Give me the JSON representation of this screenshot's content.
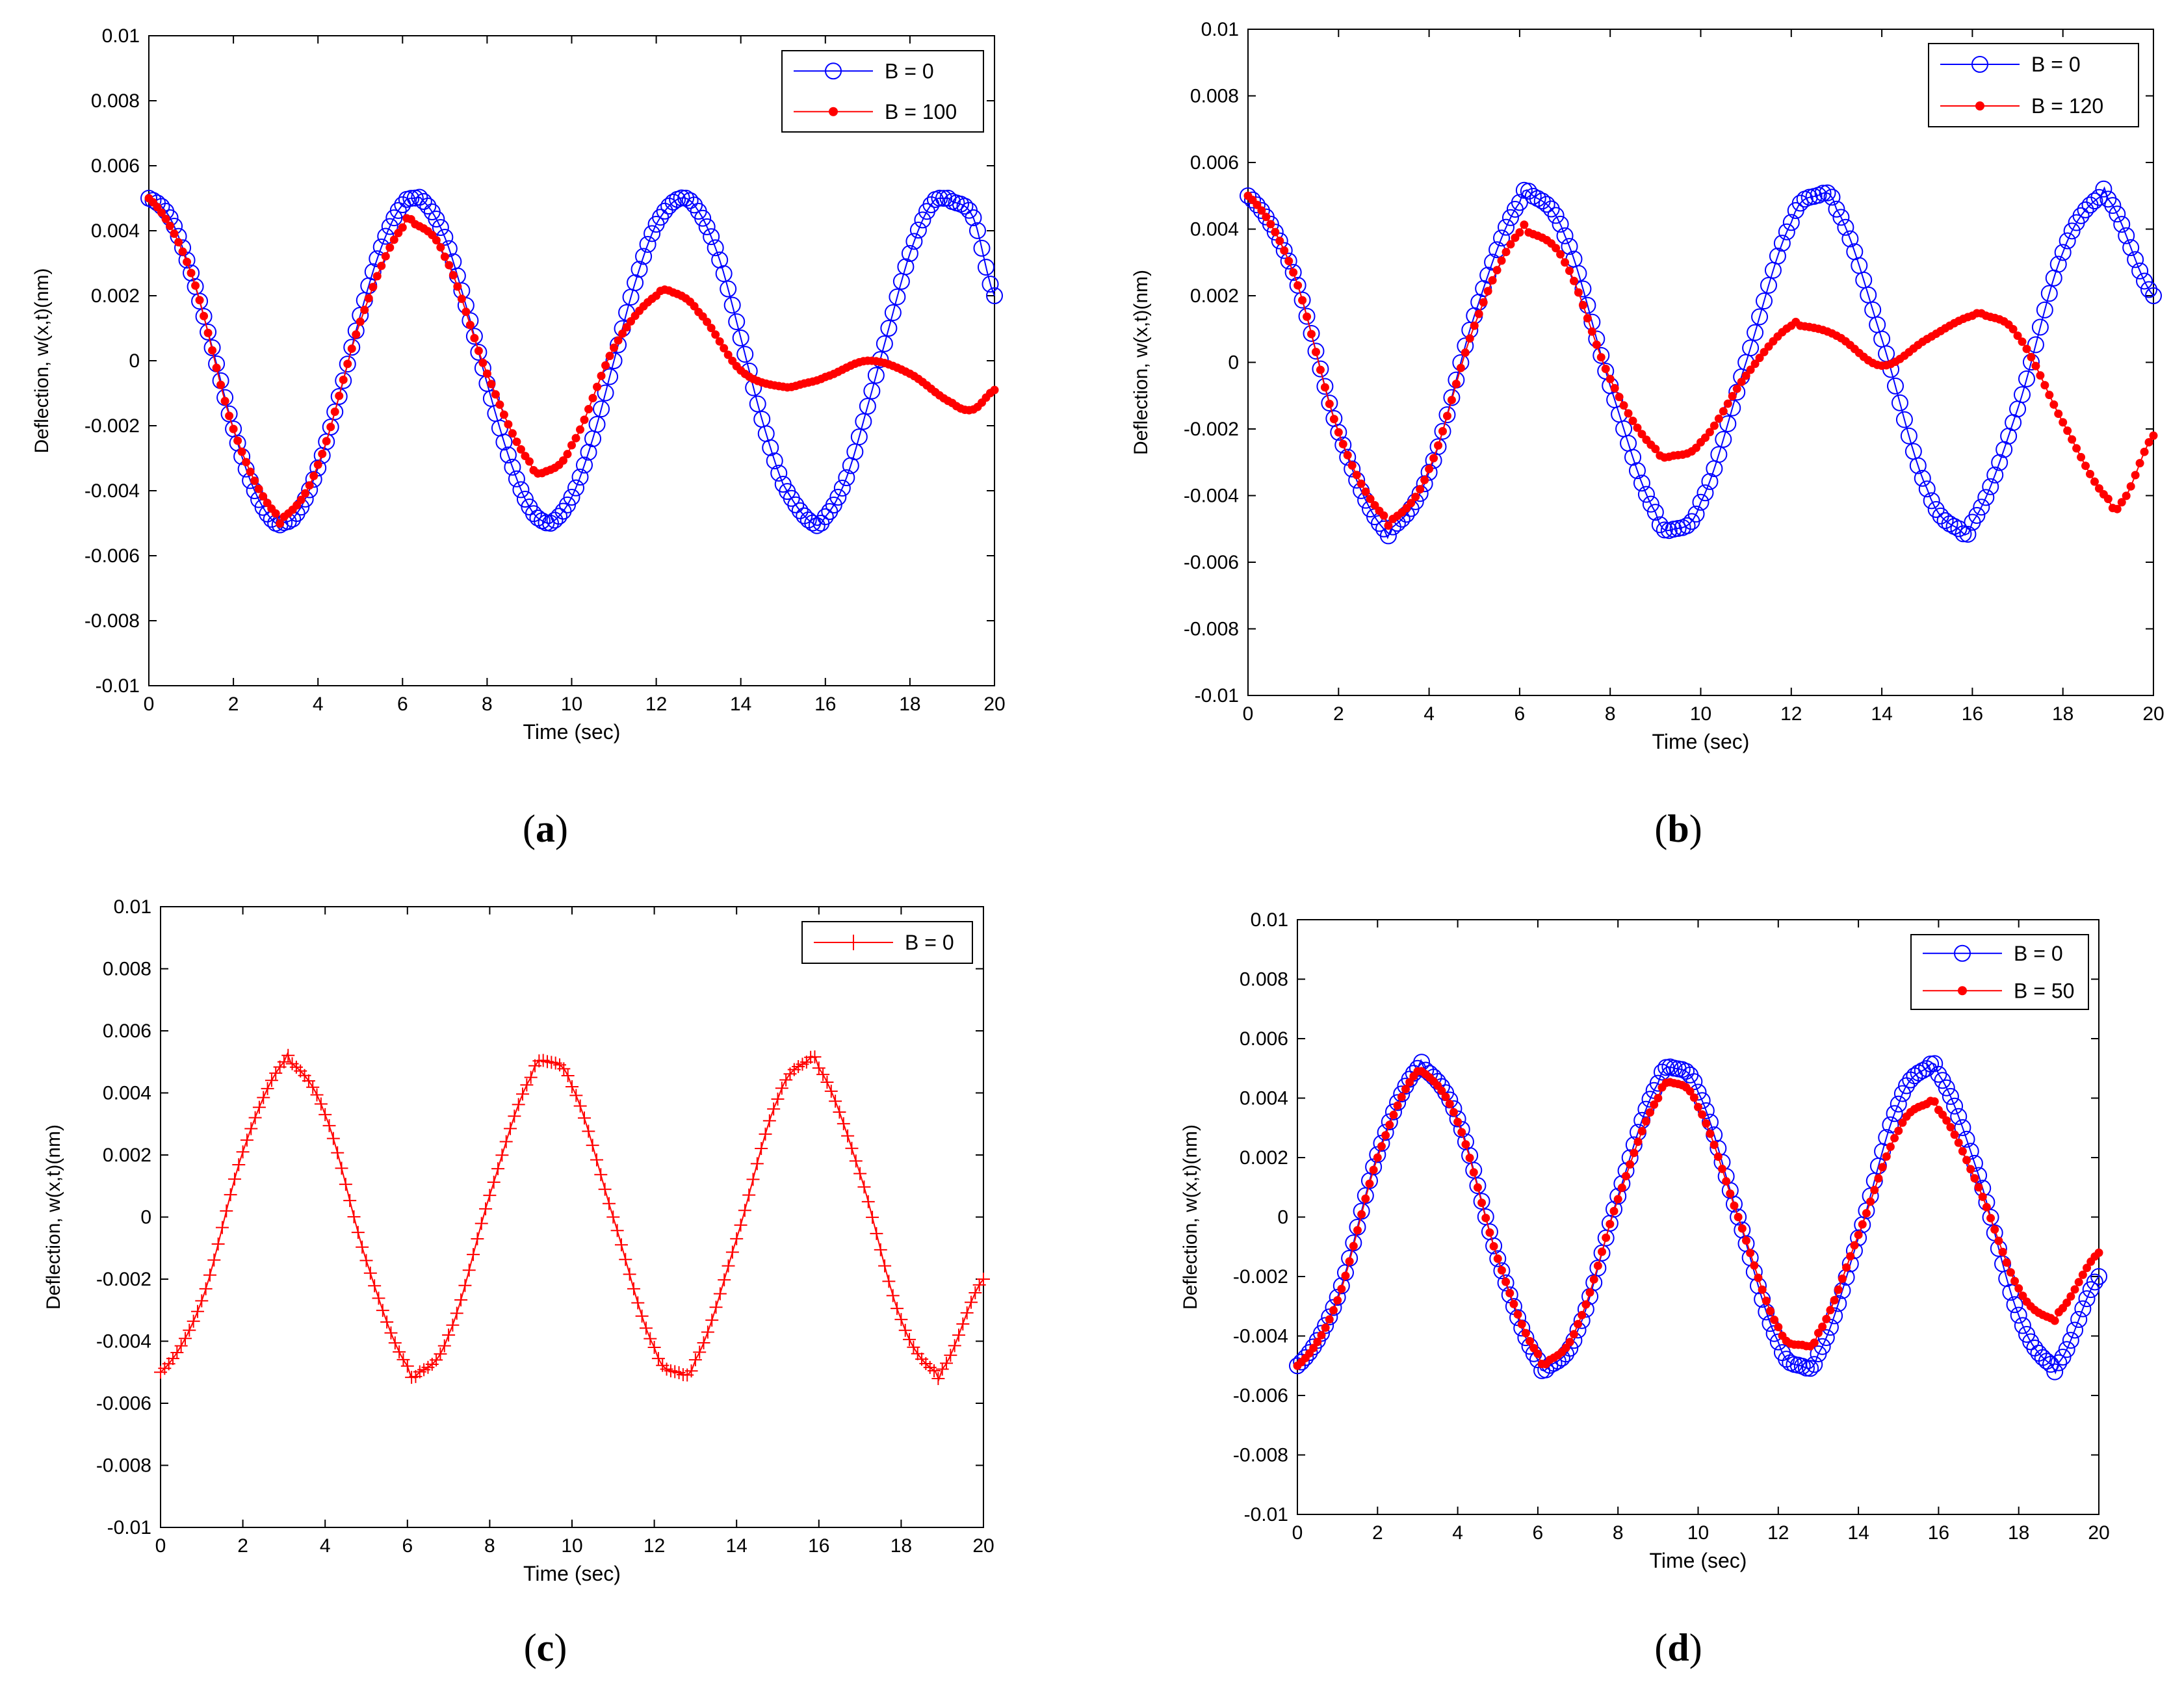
{
  "chart_data": [
    {
      "panel": "a",
      "caption": "(a)",
      "type": "line",
      "xlabel": "Time (sec)",
      "ylabel": "Deflection,  w(x,t)(nm)",
      "xlim": [
        0,
        20
      ],
      "ylim": [
        -0.01,
        0.01
      ],
      "xticks": [
        "0",
        "2",
        "4",
        "6",
        "8",
        "10",
        "12",
        "14",
        "16",
        "18",
        "20"
      ],
      "yticks": [
        "-0.01",
        "-0.008",
        "-0.006",
        "-0.004",
        "-0.002",
        "0",
        "0.002",
        "0.004",
        "0.006",
        "0.008",
        "0.01"
      ],
      "grid": false,
      "legend": "top-right",
      "series": [
        {
          "name": "B = 0",
          "marker": "circle",
          "color": "#0000ff",
          "amplitude": 0.005,
          "omega": 1.0,
          "phase": "cos",
          "damping": 0,
          "x": [
            0,
            0.5,
            1,
            1.5,
            2,
            2.5,
            3,
            3.14,
            3.5,
            4,
            4.5,
            5,
            5.5,
            6,
            6.28,
            6.5,
            7,
            7.5,
            8,
            8.5,
            9,
            9.42,
            9.5,
            10,
            10.5,
            11,
            11.5,
            12,
            12.57,
            13,
            13.5,
            14,
            14.5,
            15,
            15.71,
            16,
            16.5,
            17,
            17.5,
            18,
            18.5,
            18.85,
            19,
            19.5,
            20
          ],
          "values": [
            0.005,
            0.0044,
            0.0027,
            0.0004,
            -0.0021,
            -0.004,
            -0.005,
            -0.005,
            -0.0047,
            -0.0033,
            -0.0011,
            0.0014,
            0.0035,
            0.0048,
            0.005,
            0.0049,
            0.0038,
            0.0017,
            -0.0007,
            -0.0029,
            -0.0045,
            -0.005,
            -0.005,
            -0.0042,
            -0.0024,
            0.0,
            0.0024,
            0.0042,
            0.005,
            0.0046,
            0.0031,
            0.0007,
            -0.0018,
            -0.0038,
            -0.005,
            -0.0048,
            -0.0036,
            -0.0014,
            0.001,
            0.0033,
            0.0048,
            0.005,
            0.0049,
            0.0044,
            0.002
          ]
        },
        {
          "name": "B = 100",
          "marker": "dot",
          "color": "#ff0000",
          "x": [
            0,
            1,
            2,
            3,
            3.2,
            4,
            5,
            6,
            6.3,
            7,
            8,
            9,
            9.4,
            10,
            11,
            12,
            12.4,
            13,
            14,
            15,
            15.5,
            16,
            17,
            18,
            19,
            19.5,
            20
          ],
          "values": [
            0.005,
            0.0027,
            -0.0021,
            -0.0047,
            -0.0048,
            -0.0032,
            0.0012,
            0.0041,
            0.0042,
            0.0032,
            -0.0004,
            -0.0031,
            -0.0034,
            -0.0026,
            0.0004,
            0.002,
            0.0021,
            0.0015,
            -0.0003,
            -0.0008,
            -0.0007,
            -0.0005,
            0.0,
            -0.0004,
            -0.0013,
            -0.0015,
            -0.0009
          ]
        }
      ]
    },
    {
      "panel": "b",
      "caption": "(b)",
      "type": "line",
      "xlabel": "Time (sec)",
      "ylabel": "Deflection,  w(x,t)(nm)",
      "xlim": [
        0,
        20
      ],
      "ylim": [
        -0.01,
        0.01
      ],
      "xticks": [
        "0",
        "2",
        "4",
        "6",
        "8",
        "10",
        "12",
        "14",
        "16",
        "18",
        "20"
      ],
      "yticks": [
        "-0.01",
        "-0.008",
        "-0.006",
        "-0.004",
        "-0.002",
        "0",
        "0.002",
        "0.004",
        "0.006",
        "0.008",
        "0.01"
      ],
      "grid": false,
      "legend": "top-right",
      "series": [
        {
          "name": "B = 0",
          "marker": "circle",
          "color": "#0000ff",
          "x": [
            0,
            1,
            2,
            3,
            3.14,
            4,
            5,
            6,
            6.28,
            7,
            8,
            9,
            9.42,
            10,
            11,
            12,
            12.57,
            13,
            14,
            15,
            15.71,
            16,
            17,
            18,
            18.85,
            19,
            20
          ],
          "values": [
            0.005,
            0.0027,
            -0.0021,
            -0.005,
            -0.005,
            -0.0033,
            0.0014,
            0.0048,
            0.005,
            0.0038,
            -0.0007,
            -0.0045,
            -0.005,
            -0.0042,
            0.0,
            0.0042,
            0.005,
            0.0046,
            0.0007,
            -0.0038,
            -0.005,
            -0.0048,
            -0.0014,
            0.0033,
            0.005,
            0.0049,
            0.002
          ]
        },
        {
          "name": "B = 120",
          "marker": "dot",
          "color": "#ff0000",
          "x": [
            0,
            1,
            2,
            3,
            3.2,
            4,
            5,
            6,
            6.2,
            7,
            8,
            9,
            9.4,
            10,
            11,
            12,
            12.2,
            13,
            14,
            15,
            16,
            16.3,
            17,
            18,
            19,
            19.3,
            20
          ],
          "values": [
            0.005,
            0.0027,
            -0.0021,
            -0.0046,
            -0.0047,
            -0.0032,
            0.0011,
            0.0039,
            0.0039,
            0.003,
            -0.0005,
            -0.0026,
            -0.0028,
            -0.0024,
            -0.0004,
            0.0011,
            0.0011,
            0.0008,
            -0.0001,
            0.0007,
            0.0014,
            0.0014,
            0.0008,
            -0.0018,
            -0.0041,
            -0.0042,
            -0.0022
          ]
        }
      ]
    },
    {
      "panel": "c",
      "caption": "(c)",
      "type": "line",
      "xlabel": "Time (sec)",
      "ylabel": "Deflection,  w(x,t)(nm)",
      "xlim": [
        0,
        20
      ],
      "ylim": [
        -0.01,
        0.01
      ],
      "xticks": [
        "0",
        "2",
        "4",
        "6",
        "8",
        "10",
        "12",
        "14",
        "16",
        "18",
        "20"
      ],
      "yticks": [
        "-0.01",
        "-0.008",
        "-0.006",
        "-0.004",
        "-0.002",
        "0",
        "0.002",
        "0.004",
        "0.006",
        "0.008",
        "0.01"
      ],
      "grid": false,
      "legend": "top-right",
      "series": [
        {
          "name": "B = 0",
          "marker": "plus",
          "color": "#ff0000",
          "x": [
            0,
            1,
            2,
            3,
            3.14,
            4,
            5,
            6,
            6.28,
            7,
            8,
            9,
            9.42,
            10,
            11,
            12,
            12.57,
            13,
            14,
            15,
            15.71,
            16,
            17,
            18,
            18.85,
            19,
            20
          ],
          "values": [
            -0.005,
            -0.0027,
            0.0021,
            0.005,
            0.005,
            0.0033,
            -0.0014,
            -0.0048,
            -0.005,
            -0.0038,
            0.0007,
            0.0045,
            0.005,
            0.0042,
            0.0,
            -0.0042,
            -0.005,
            -0.0046,
            -0.0007,
            0.0038,
            0.005,
            0.0048,
            0.0014,
            -0.0033,
            -0.005,
            -0.0049,
            -0.002
          ]
        }
      ]
    },
    {
      "panel": "d",
      "caption": "(d)",
      "type": "line",
      "xlabel": "Time (sec)",
      "ylabel": "Deflection,  w(x,t)(nm)",
      "xlim": [
        0,
        20
      ],
      "ylim": [
        -0.01,
        0.01
      ],
      "xticks": [
        "0",
        "2",
        "4",
        "6",
        "8",
        "10",
        "12",
        "14",
        "16",
        "18",
        "20"
      ],
      "yticks": [
        "-0.01",
        "-0.008",
        "-0.006",
        "-0.004",
        "-0.002",
        "0",
        "0.002",
        "0.004",
        "0.006",
        "0.008",
        "0.01"
      ],
      "grid": false,
      "legend": "top-right",
      "series": [
        {
          "name": "B = 0",
          "marker": "circle",
          "color": "#0000ff",
          "x": [
            0,
            1,
            2,
            3,
            3.14,
            4,
            5,
            6,
            6.28,
            7,
            8,
            9,
            9.42,
            10,
            11,
            12,
            12.57,
            13,
            14,
            15,
            15.71,
            16,
            17,
            18,
            18.85,
            19,
            20
          ],
          "values": [
            -0.005,
            -0.0027,
            0.0021,
            0.005,
            0.005,
            0.0033,
            -0.0014,
            -0.0048,
            -0.005,
            -0.0038,
            0.0007,
            0.0045,
            0.005,
            0.0042,
            0.0,
            -0.0042,
            -0.005,
            -0.0046,
            -0.0007,
            0.0038,
            0.005,
            0.0048,
            0.0014,
            -0.0033,
            -0.005,
            -0.0049,
            -0.002
          ]
        },
        {
          "name": "B = 50",
          "marker": "dot",
          "color": "#ff0000",
          "x": [
            0,
            1,
            2,
            3,
            3.1,
            4,
            5,
            6,
            6.3,
            7,
            8,
            9,
            9.4,
            10,
            11,
            12,
            12.6,
            13,
            14,
            15,
            15.7,
            16,
            17,
            18,
            18.8,
            19,
            20
          ],
          "values": [
            -0.005,
            -0.0028,
            0.002,
            0.0049,
            0.0049,
            0.0032,
            -0.0014,
            -0.0046,
            -0.0048,
            -0.0036,
            0.0006,
            0.004,
            0.0045,
            0.0037,
            0.0,
            -0.0037,
            -0.0043,
            -0.0039,
            -0.0006,
            0.0029,
            0.0038,
            0.0036,
            0.001,
            -0.0024,
            -0.0034,
            -0.0032,
            -0.0012
          ]
        }
      ]
    }
  ]
}
